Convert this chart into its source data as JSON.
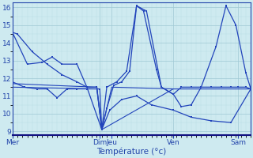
{
  "bg_color": "#ceeaf0",
  "line_color": "#2244bb",
  "grid_major_color": "#9fc8d4",
  "grid_minor_color": "#b8dce6",
  "xlabel": "Température (°c)",
  "xlim": [
    0,
    24
  ],
  "ylim": [
    8.8,
    16.3
  ],
  "yticks": [
    9,
    10,
    11,
    12,
    13,
    14,
    15,
    16
  ],
  "xtick_positions": [
    0,
    8.8,
    10.0,
    16.2,
    22.7
  ],
  "xtick_labels": [
    "Mer",
    "Dim",
    "Jeu",
    "Ven",
    "Sam"
  ],
  "lines": [
    {
      "x": [
        0,
        0.5,
        2.0,
        3.5,
        5.0,
        6.5,
        7.5,
        8.5,
        9.0,
        9.5,
        10.2,
        11.0,
        11.8,
        12.5,
        13.2,
        14.5,
        15.0,
        16.2,
        17.0,
        18.0,
        19.0,
        20.0,
        21.0,
        22.0,
        22.7,
        23.5,
        24
      ],
      "y": [
        14.6,
        14.5,
        13.5,
        12.8,
        12.2,
        11.8,
        11.5,
        11.5,
        9.1,
        10.3,
        11.6,
        11.8,
        12.4,
        16.1,
        15.8,
        12.5,
        11.5,
        11.1,
        11.5,
        11.5,
        11.5,
        11.5,
        11.5,
        11.5,
        11.5,
        11.5,
        11.4
      ],
      "marker": true,
      "lw": 0.9
    },
    {
      "x": [
        0,
        1.2,
        2.5,
        3.5,
        4.5,
        5.5,
        6.5,
        7.5,
        8.8,
        9.0,
        9.8,
        11.0,
        12.5,
        14.0,
        16.2,
        18.0,
        20.0,
        22.0,
        24
      ],
      "y": [
        11.8,
        11.5,
        11.4,
        11.4,
        10.9,
        11.4,
        11.4,
        11.4,
        11.4,
        9.1,
        10.2,
        10.8,
        11.0,
        10.5,
        10.2,
        9.8,
        9.6,
        9.5,
        11.4
      ],
      "marker": true,
      "lw": 0.9
    },
    {
      "x": [
        0,
        4,
        8.5,
        9.0,
        10.0,
        16.2,
        24
      ],
      "y": [
        11.7,
        11.6,
        11.5,
        9.1,
        11.5,
        11.4,
        11.4
      ],
      "marker": false,
      "lw": 0.8
    },
    {
      "x": [
        0,
        8.5,
        9.0,
        16.2,
        24
      ],
      "y": [
        11.5,
        11.4,
        9.1,
        11.4,
        11.4
      ],
      "marker": false,
      "lw": 0.8
    },
    {
      "x": [
        0,
        1.5,
        3.0,
        4.0,
        5.0,
        6.5,
        7.5,
        9.0,
        9.5,
        10.5,
        11.5,
        12.5,
        13.5,
        15.0,
        16.2,
        17.0,
        18.0,
        19.0,
        20.5,
        21.5,
        22.5,
        23.5,
        24
      ],
      "y": [
        14.6,
        12.8,
        12.9,
        13.2,
        12.8,
        12.8,
        11.5,
        9.1,
        11.5,
        11.8,
        12.4,
        16.1,
        15.8,
        11.5,
        11.1,
        10.4,
        10.5,
        11.5,
        13.8,
        16.1,
        15.0,
        12.3,
        11.4
      ],
      "marker": true,
      "lw": 0.9
    }
  ]
}
